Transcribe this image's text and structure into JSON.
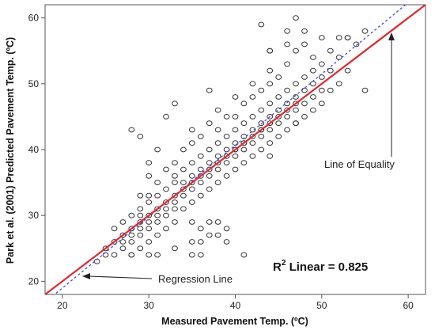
{
  "chart_data": {
    "type": "scatter",
    "title": "",
    "xlabel": "Measured Pavement Temp. (ºC)",
    "ylabel": "Park et al. (2001) Predicted Pavement Temp. (ºC)",
    "xlim": [
      18,
      62
    ],
    "ylim": [
      18,
      62
    ],
    "x_ticks": [
      20,
      30,
      40,
      50,
      60
    ],
    "y_ticks": [
      20,
      30,
      40,
      50,
      60
    ],
    "grid": false,
    "marker": "open-circle",
    "colors": {
      "points": "#333333",
      "equality_line": "#e0282e",
      "regression_line": "#3a4fd8"
    },
    "points": {
      "x": [
        24,
        25,
        25,
        26,
        26,
        26,
        27,
        27,
        27,
        27,
        28,
        28,
        28,
        28,
        28,
        29,
        29,
        29,
        29,
        29,
        29,
        30,
        30,
        30,
        30,
        30,
        30,
        31,
        31,
        31,
        31,
        31,
        31,
        32,
        32,
        32,
        32,
        32,
        32,
        33,
        33,
        33,
        33,
        33,
        33,
        33,
        34,
        34,
        34,
        34,
        34,
        34,
        35,
        35,
        35,
        35,
        35,
        35,
        35,
        36,
        36,
        36,
        36,
        36,
        36,
        37,
        37,
        37,
        37,
        37,
        37,
        38,
        38,
        38,
        38,
        38,
        38,
        38,
        39,
        39,
        39,
        39,
        39,
        39,
        40,
        40,
        40,
        40,
        40,
        40,
        40,
        41,
        41,
        41,
        41,
        41,
        41,
        42,
        42,
        42,
        42,
        42,
        42,
        42,
        43,
        43,
        43,
        43,
        43,
        43,
        44,
        44,
        44,
        44,
        44,
        44,
        44,
        45,
        45,
        45,
        45,
        45,
        45,
        46,
        46,
        46,
        46,
        46,
        46,
        47,
        47,
        47,
        47,
        47,
        47,
        48,
        48,
        48,
        48,
        48,
        49,
        49,
        49,
        49,
        49,
        50,
        50,
        50,
        50,
        51,
        51,
        51,
        52,
        52,
        53,
        53,
        54,
        55,
        55,
        43,
        47,
        48,
        44,
        37,
        36,
        39,
        36,
        37,
        41,
        38,
        29,
        30,
        28,
        31,
        35,
        37,
        38,
        35,
        33,
        30,
        30,
        31,
        29,
        28,
        40,
        41,
        33,
        32,
        46,
        44,
        46,
        50,
        52,
        53,
        47,
        43,
        44,
        36,
        35,
        39
      ],
      "y": [
        23,
        24,
        25,
        24,
        26,
        28,
        25,
        27,
        29,
        26,
        24,
        26,
        28,
        30,
        27,
        25,
        27,
        29,
        31,
        28,
        30,
        26,
        28,
        30,
        32,
        29,
        33,
        27,
        29,
        31,
        33,
        30,
        35,
        28,
        30,
        32,
        34,
        31,
        37,
        29,
        31,
        33,
        35,
        32,
        38,
        36,
        31,
        33,
        35,
        37,
        34,
        40,
        32,
        34,
        36,
        38,
        35,
        41,
        43,
        33,
        35,
        37,
        39,
        36,
        42,
        34,
        36,
        38,
        40,
        37,
        44,
        35,
        37,
        39,
        41,
        38,
        43,
        46,
        36,
        38,
        40,
        42,
        39,
        45,
        37,
        39,
        41,
        43,
        40,
        45,
        48,
        38,
        40,
        42,
        44,
        41,
        47,
        39,
        41,
        43,
        45,
        42,
        48,
        50,
        40,
        42,
        44,
        46,
        43,
        49,
        41,
        43,
        45,
        47,
        44,
        50,
        52,
        42,
        44,
        46,
        48,
        45,
        51,
        43,
        45,
        47,
        49,
        46,
        53,
        44,
        46,
        48,
        50,
        47,
        55,
        45,
        47,
        49,
        51,
        56,
        46,
        48,
        50,
        52,
        54,
        47,
        49,
        51,
        53,
        49,
        52,
        55,
        50,
        54,
        52,
        57,
        56,
        58,
        49,
        59,
        60,
        58,
        55,
        49,
        26,
        26,
        28,
        27,
        24,
        27,
        33,
        24,
        24,
        24,
        29,
        29,
        29,
        24,
        25,
        36,
        38,
        40,
        42,
        43,
        40,
        41,
        47,
        45,
        56,
        55,
        58,
        57,
        57,
        57,
        44,
        43,
        39,
        24,
        26,
        28
      ]
    },
    "annotations": {
      "equality": "Line of Equality",
      "regression": "Regression Line",
      "r2_prefix": "R",
      "r2_sup": "2",
      "r2_text": " Linear = 0.825"
    },
    "equality_line": {
      "x": [
        18,
        62
      ],
      "y": [
        18,
        62
      ]
    },
    "regression_line": {
      "x": [
        18,
        62
      ],
      "y": [
        16.8,
        64.5
      ]
    }
  }
}
